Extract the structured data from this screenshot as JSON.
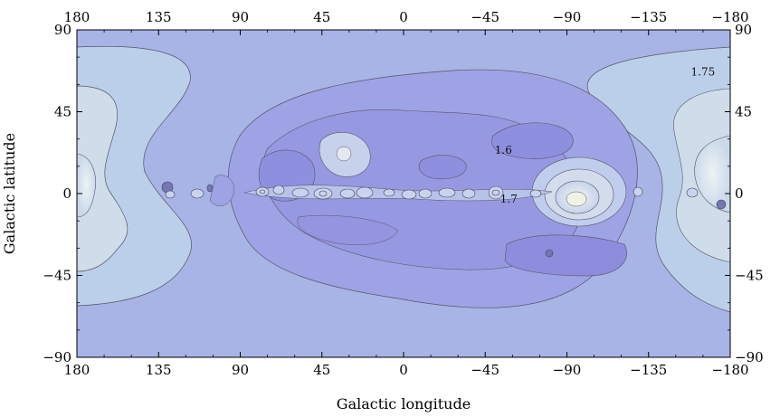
{
  "chart_data": {
    "type": "heatmap",
    "subtype": "contour-map",
    "xlabel": "Galactic longitude",
    "ylabel": "Galactic latitude",
    "x_range": [
      180,
      -180
    ],
    "y_range": [
      -90,
      90
    ],
    "x_ticks": [
      180,
      135,
      90,
      45,
      0,
      -45,
      -90,
      -135,
      -180
    ],
    "y_ticks": [
      90,
      45,
      0,
      -45,
      -90
    ],
    "x_tick_labels": [
      "180",
      "135",
      "90",
      "45",
      "0",
      "−45",
      "−90",
      "−135",
      "−180"
    ],
    "y_tick_labels": [
      "90",
      "45",
      "0",
      "−45",
      "−90"
    ],
    "contour_labels": [
      {
        "text": "1.75",
        "lon": -165,
        "lat": 65
      },
      {
        "text": "1.6",
        "lon": -55,
        "lat": 22
      },
      {
        "text": "1.7",
        "lon": -58,
        "lat": -5
      }
    ],
    "colors": {
      "background": "#a9b4e6",
      "low": "#8f8fe0",
      "high": "#e6eef3",
      "contour_line": "#555566"
    },
    "grid": false,
    "legend": "none"
  }
}
